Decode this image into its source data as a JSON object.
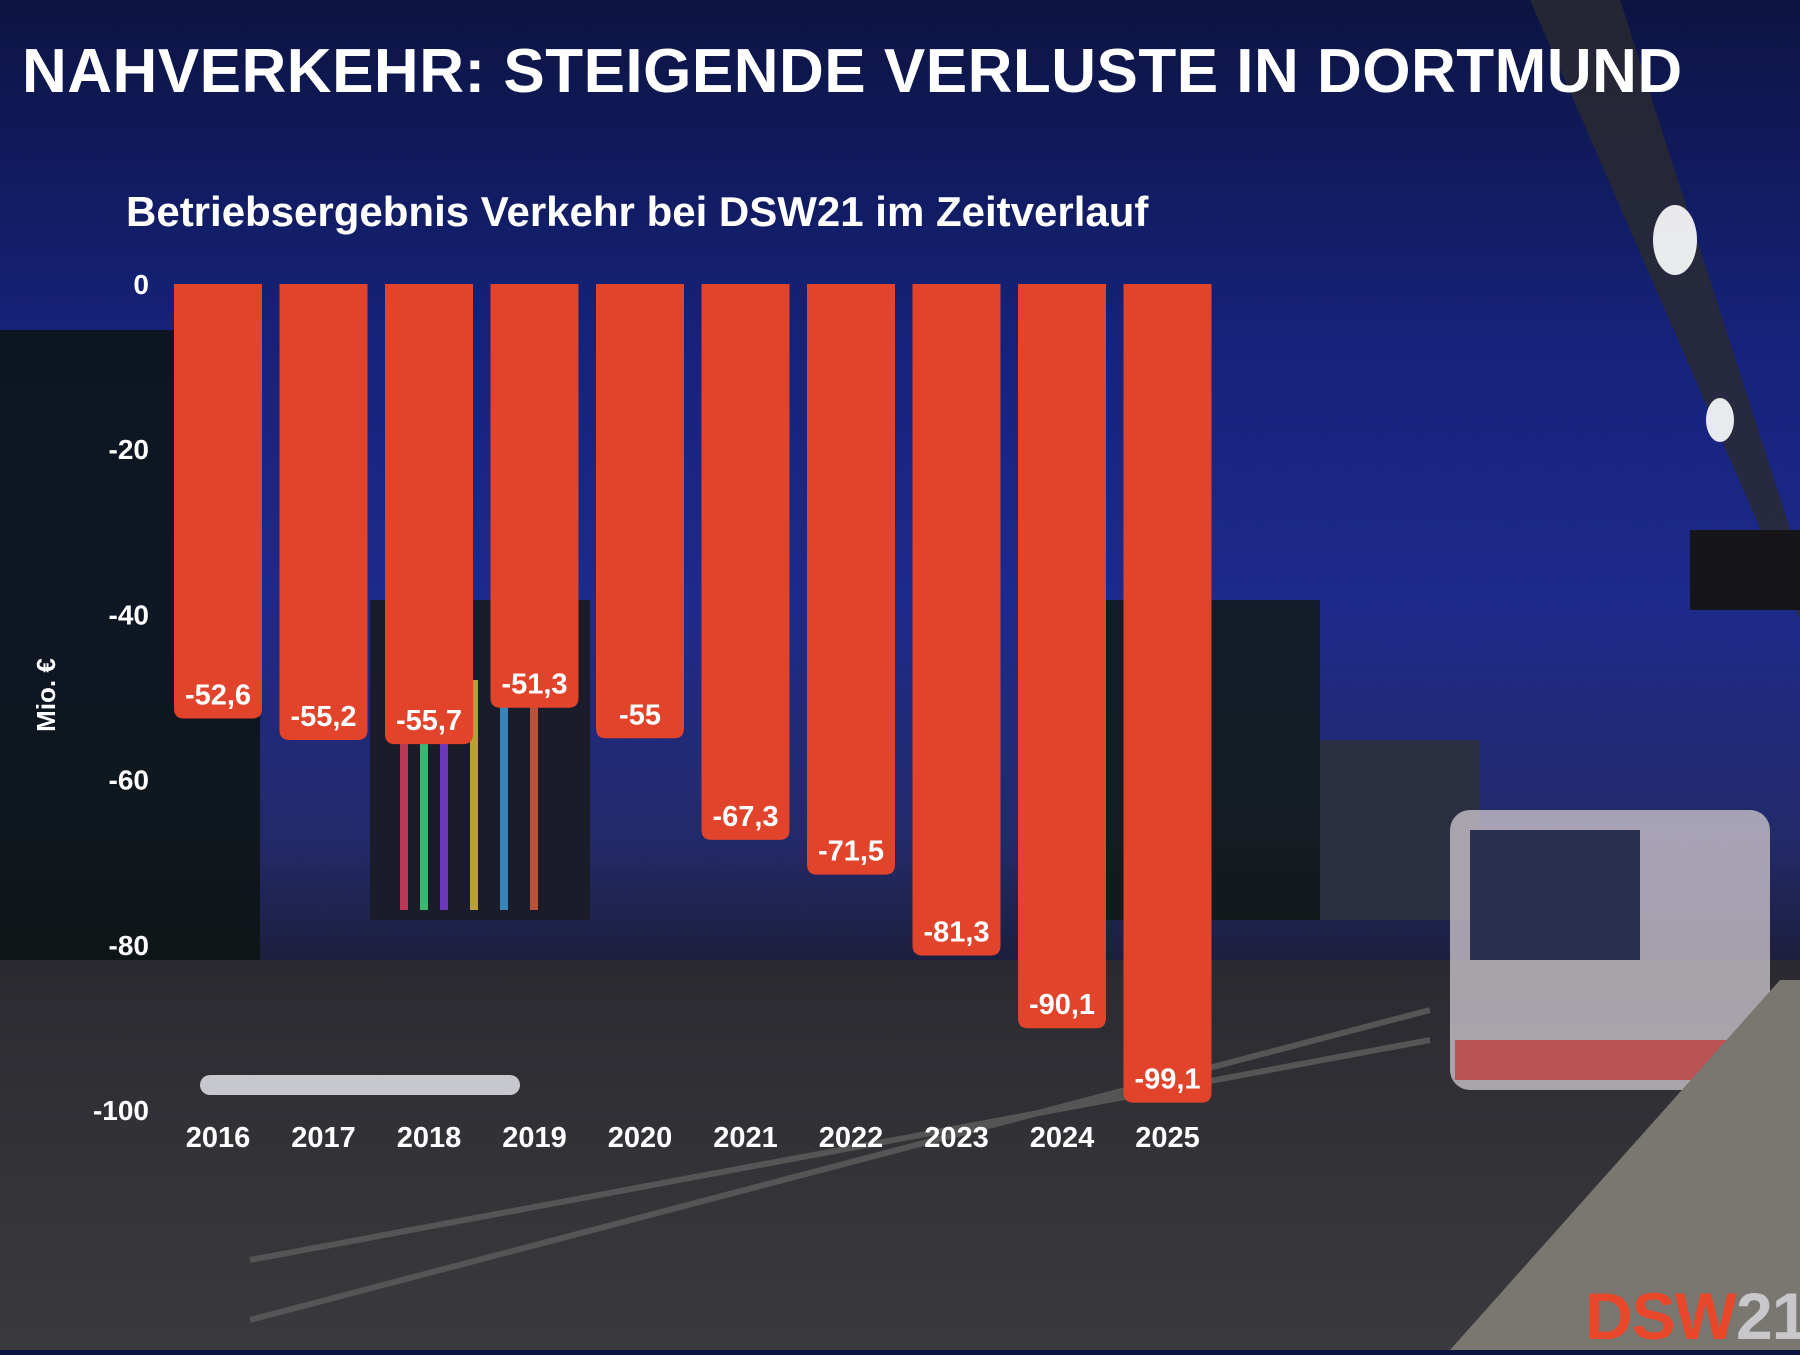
{
  "title": "NAHVERKEHR: STEIGENDE VERLUSTE IN DORTMUND",
  "logo": {
    "part1": "DSW",
    "part2": "21"
  },
  "colors": {
    "bar": "#e2432b",
    "text": "#ffffff"
  },
  "chart_data": {
    "type": "bar",
    "title": "Betriebsergebnis Verkehr bei DSW21 im Zeitverlauf",
    "xlabel": "",
    "ylabel": "Mio. €",
    "ylim": [
      -100,
      0
    ],
    "yticks": [
      0,
      -20,
      -40,
      -60,
      -80,
      -100
    ],
    "ytick_labels": [
      "0",
      "-20",
      "-40",
      "-60",
      "-80",
      "-100"
    ],
    "grid": false,
    "categories": [
      "2016",
      "2017",
      "2018",
      "2019",
      "2020",
      "2021",
      "2022",
      "2023",
      "2024",
      "2025"
    ],
    "values": [
      -52.6,
      -55.2,
      -55.7,
      -51.3,
      -55,
      -67.3,
      -71.5,
      -81.3,
      -90.1,
      -99.1
    ],
    "value_labels": [
      "-52,6",
      "-55,2",
      "-55,7",
      "-51,3",
      "-55",
      "-67,3",
      "-71,5",
      "-81,3",
      "-90,1",
      "-99,1"
    ]
  }
}
